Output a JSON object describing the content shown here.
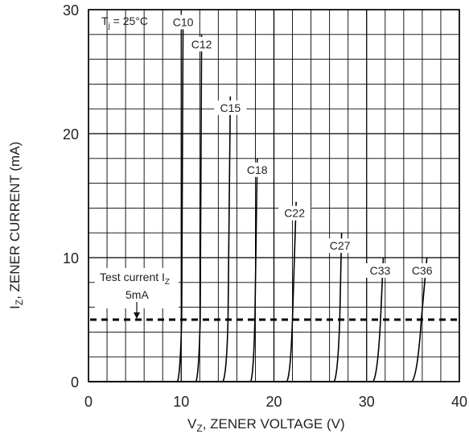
{
  "chart_data": {
    "type": "line",
    "title": "",
    "xlabel": {
      "main": "V",
      "sub": "Z",
      "rest": ", ZENER VOLTAGE (V)"
    },
    "ylabel": {
      "main": "I",
      "sub": "Z",
      "rest": ", ZENER CURRENT (mA)"
    },
    "xlim": [
      0,
      40
    ],
    "ylim": [
      0,
      30
    ],
    "x_ticks": [
      0,
      10,
      20,
      30,
      40
    ],
    "y_ticks": [
      0,
      10,
      20,
      30
    ],
    "grid": true,
    "annotations": {
      "temperature": {
        "main": "T",
        "sub": "j",
        "rest": " = 25°C"
      },
      "test_current_line1": {
        "main": "Test current I",
        "sub": "Z"
      },
      "test_current_line2": "5mA",
      "test_current_value": 5
    },
    "series": [
      {
        "name": "C10",
        "points": [
          [
            9.6,
            0
          ],
          [
            9.9,
            0.6
          ],
          [
            10.05,
            5
          ],
          [
            10.2,
            29
          ]
        ]
      },
      {
        "name": "C12",
        "points": [
          [
            11.6,
            0
          ],
          [
            11.9,
            0.6
          ],
          [
            12.05,
            5
          ],
          [
            12.2,
            28
          ]
        ]
      },
      {
        "name": "C15",
        "points": [
          [
            14.5,
            0
          ],
          [
            14.9,
            0.6
          ],
          [
            15.05,
            5
          ],
          [
            15.3,
            23
          ]
        ]
      },
      {
        "name": "C18",
        "points": [
          [
            17.5,
            0
          ],
          [
            17.8,
            0.6
          ],
          [
            17.95,
            5
          ],
          [
            18.2,
            18
          ]
        ]
      },
      {
        "name": "C22",
        "points": [
          [
            21.4,
            0
          ],
          [
            21.8,
            0.6
          ],
          [
            22.0,
            5
          ],
          [
            22.4,
            14.5
          ]
        ]
      },
      {
        "name": "C27",
        "points": [
          [
            26.5,
            0
          ],
          [
            26.9,
            0.6
          ],
          [
            27.1,
            5
          ],
          [
            27.3,
            12
          ]
        ]
      },
      {
        "name": "C33",
        "points": [
          [
            30.7,
            0
          ],
          [
            31.2,
            0.6
          ],
          [
            31.5,
            5
          ],
          [
            31.8,
            10
          ]
        ]
      },
      {
        "name": "C36",
        "points": [
          [
            34.9,
            0
          ],
          [
            35.5,
            0.6
          ],
          [
            35.9,
            5
          ],
          [
            36.5,
            10
          ]
        ]
      }
    ]
  }
}
